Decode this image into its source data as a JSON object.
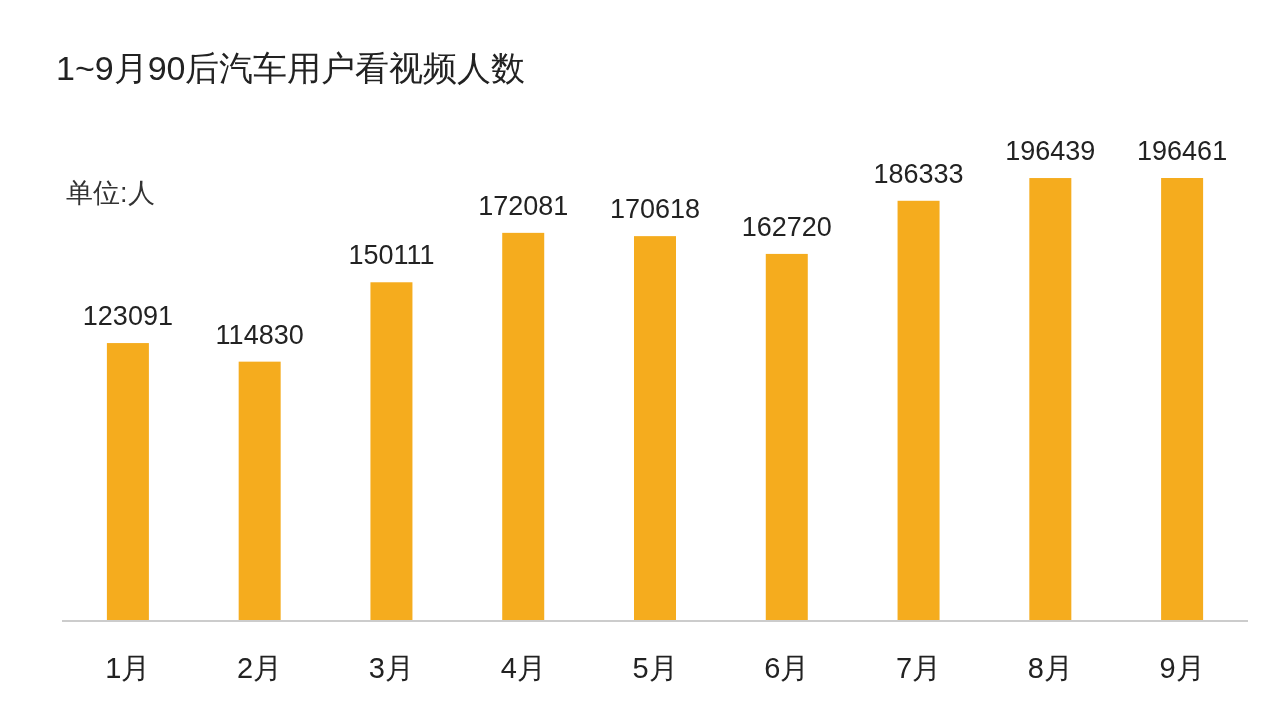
{
  "chart_data": {
    "type": "bar",
    "title": "1~9月90后汽车用户看视频人数",
    "annotations": [
      "单位:人"
    ],
    "categories": [
      "1月",
      "2月",
      "3月",
      "4月",
      "5月",
      "6月",
      "7月",
      "8月",
      "9月"
    ],
    "values": [
      123091,
      114830,
      150111,
      172081,
      170618,
      162720,
      186333,
      196439,
      196461
    ],
    "color": "#f5ac1e",
    "data_labels": true
  }
}
